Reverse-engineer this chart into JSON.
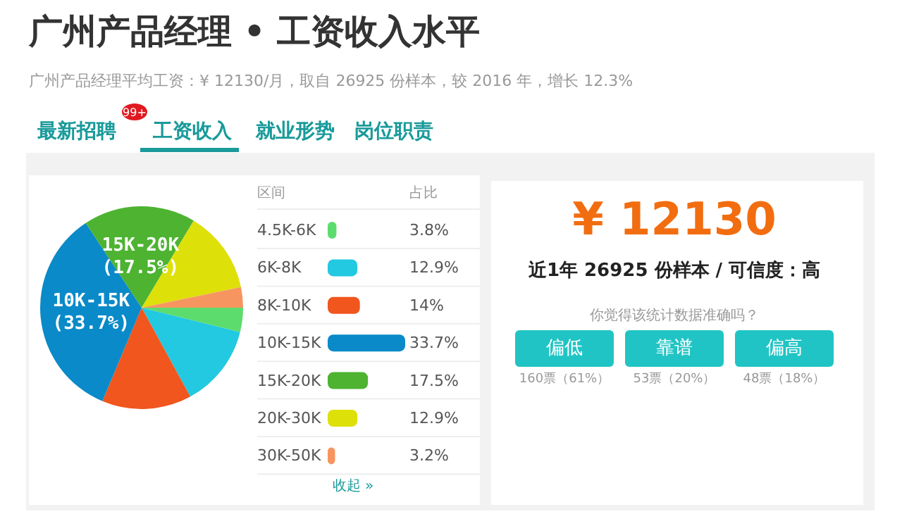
{
  "chart_data": {
    "type": "pie",
    "title": "广州产品经理 • 工资收入水平",
    "subtitle": "广州产品经理平均工资：¥ 12130/月，取自 26925 份样本，较 2016 年，增长 12.3%",
    "categories": [
      "4.5K-6K",
      "6K-8K",
      "8K-10K",
      "10K-15K",
      "15K-20K",
      "20K-30K",
      "30K-50K"
    ],
    "values": [
      3.8,
      12.9,
      14,
      33.7,
      17.5,
      12.9,
      3.2
    ],
    "colors": [
      "#5ddc6e",
      "#22c9e0",
      "#f0561d",
      "#0a8ac8",
      "#4db331",
      "#dee00a",
      "#f79560"
    ],
    "value_labels": [
      "3.8%",
      "12.9%",
      "14%",
      "33.7%",
      "17.5%",
      "12.9%",
      "3.2%"
    ],
    "annotations": [
      "最新招聘",
      "99+",
      "工资收入",
      "就业形势",
      "岗位职责",
      "区间",
      "占比",
      "收起 »",
      "¥ 12130",
      "近1年 26925 份样本 / 可信度：高",
      "你觉得该统计数据准确吗？",
      "偏低",
      "靠谱",
      "偏高",
      "160票（61%）",
      "53票（20%）",
      "48票（18%）",
      {
        "text": "10K-15K",
        "x": "10K-15K"
      },
      {
        "text": "(33.7%)",
        "x": "10K-15K"
      },
      {
        "text": "15K-20K",
        "x": "15K-20K"
      },
      {
        "text": "(17.5%)",
        "x": "15K-20K"
      }
    ],
    "legend": "right"
  }
}
